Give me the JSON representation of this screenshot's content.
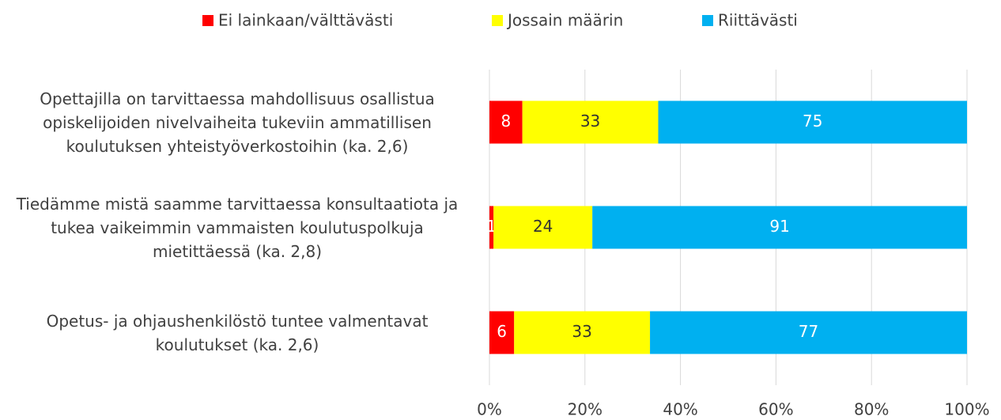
{
  "chart_data": {
    "type": "bar",
    "orientation": "horizontal",
    "stack": "percent",
    "categories": [
      "Opettajilla on tarvittaessa mahdollisuus osallistua opiskelijoiden nivelvaiheita tukeviin ammatillisen koulutuksen yhteistyöverkostoihin (ka. 2,6)",
      "Tiedämme mistä saamme tarvittaessa konsultaatiota ja tukea vaikeimmin vammaisten koulutuspolkuja mietittäessä (ka. 2,8)",
      "Opetus- ja ohjaushenkilöstö tuntee valmentavat koulutukset (ka. 2,6)"
    ],
    "series": [
      {
        "name": "Ei lainkaan/välttävästi",
        "color": "#ff0000",
        "label_color": "#ffffff",
        "values": [
          8,
          1,
          6
        ]
      },
      {
        "name": "Jossain määrin",
        "color": "#ffff00",
        "label_color": "#333333",
        "values": [
          33,
          24,
          33
        ]
      },
      {
        "name": "Riittävästi",
        "color": "#00b0f0",
        "label_color": "#ffffff",
        "values": [
          75,
          91,
          77
        ]
      }
    ],
    "xlim": [
      0,
      100
    ],
    "xticks": [
      {
        "value": 0,
        "label": "0%"
      },
      {
        "value": 20,
        "label": "20%"
      },
      {
        "value": 40,
        "label": "40%"
      },
      {
        "value": 60,
        "label": "60%"
      },
      {
        "value": 80,
        "label": "80%"
      },
      {
        "value": 100,
        "label": "100%"
      }
    ],
    "grid": true,
    "legend": "top"
  }
}
